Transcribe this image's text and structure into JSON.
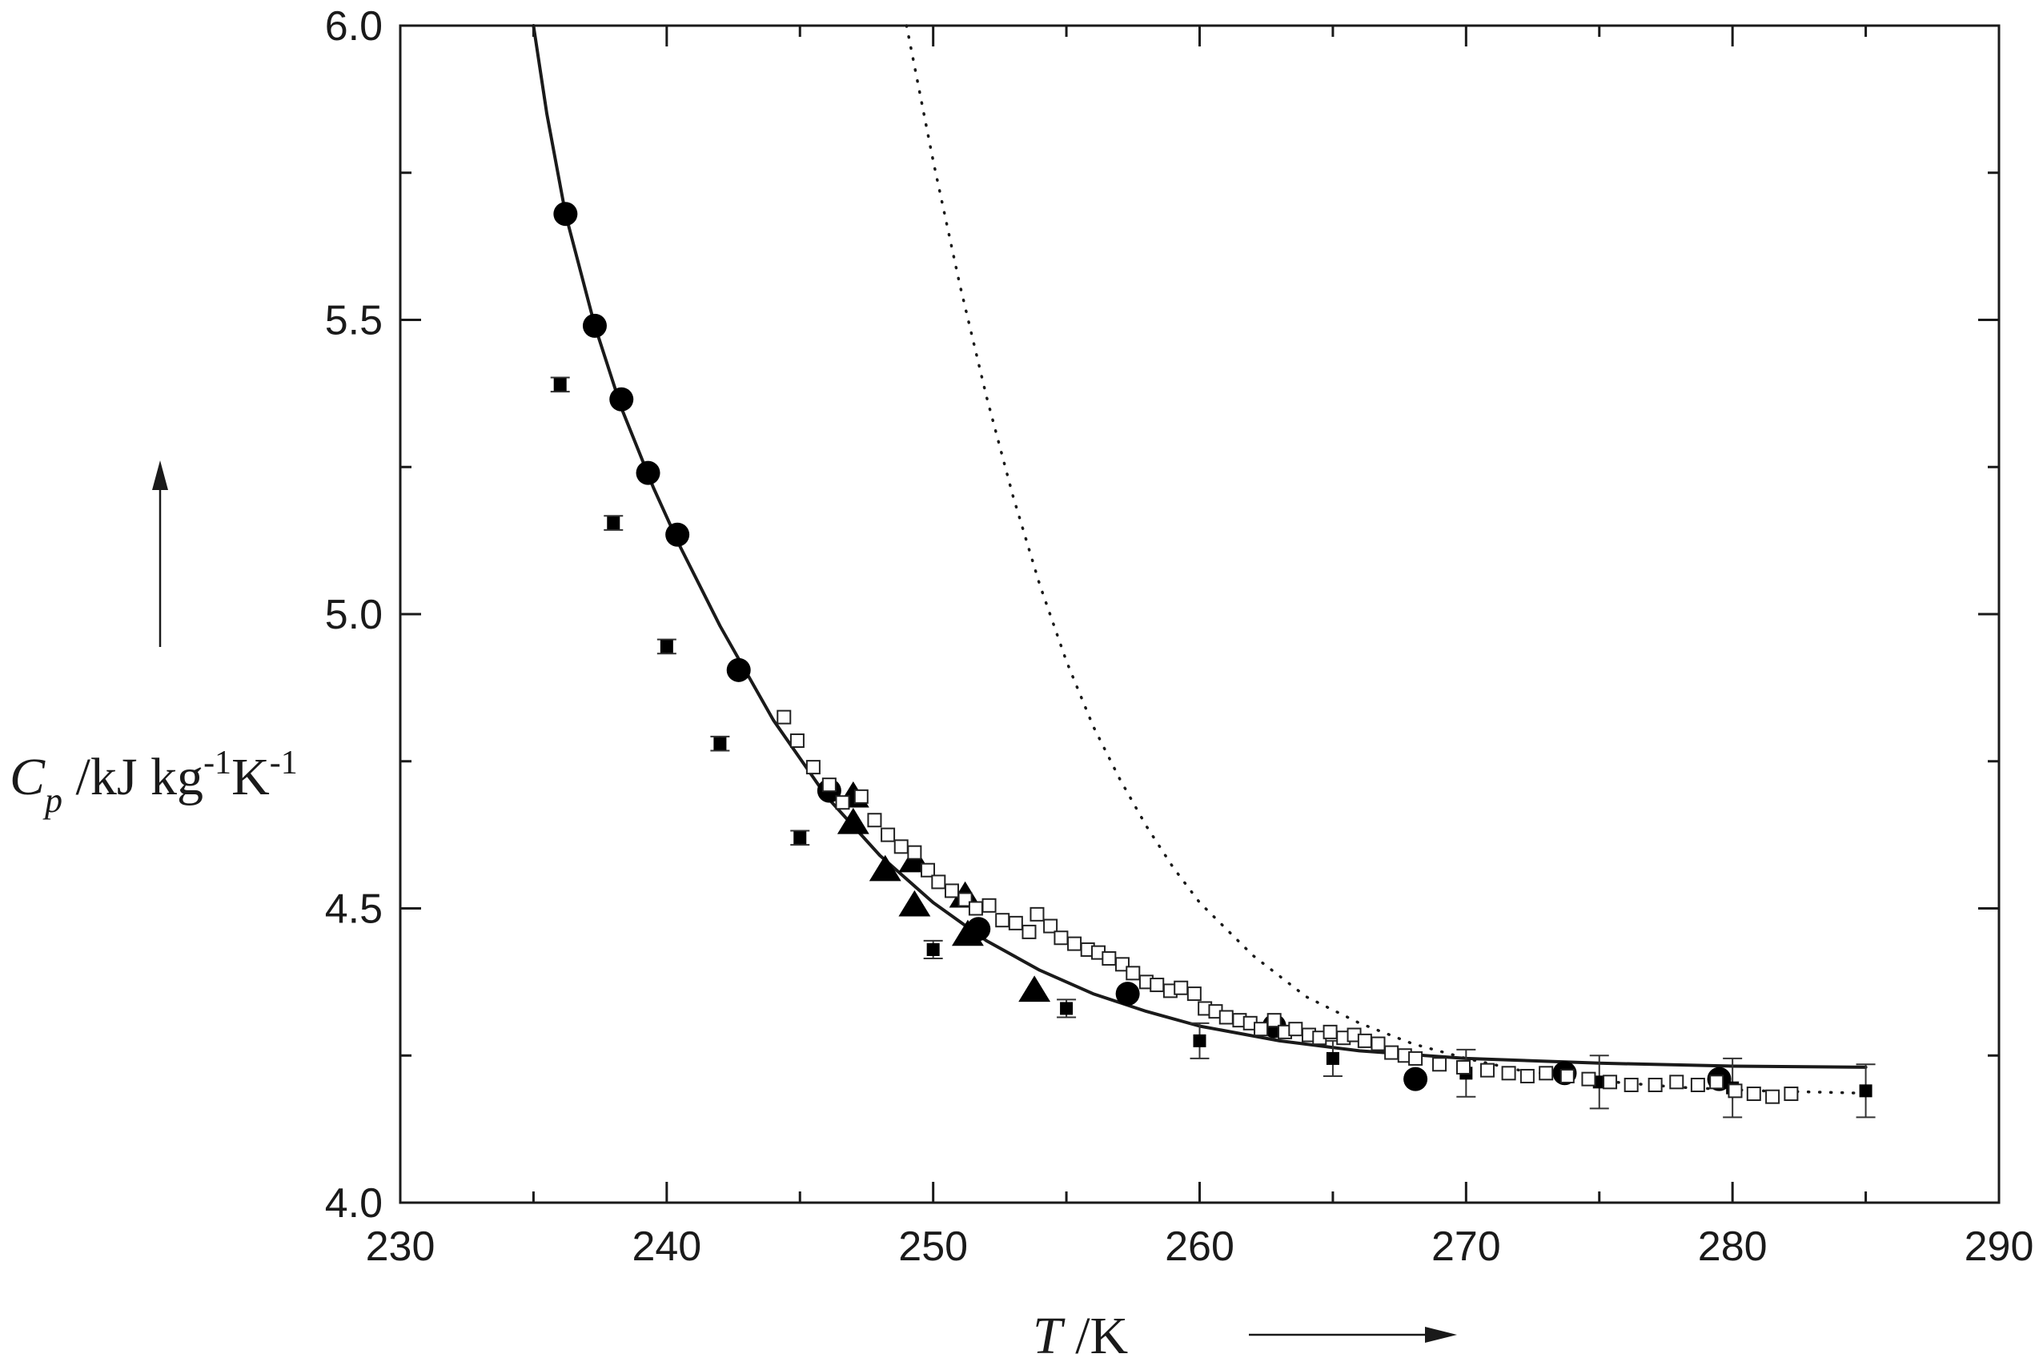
{
  "chart_data": {
    "type": "scatter",
    "xlabel": {
      "symbol": "T",
      "unit": " /K"
    },
    "ylabel": {
      "symbol": "C",
      "subscript": "p",
      "unit_1": " /kJ kg",
      "exp_1": "-1",
      "unit_2": "K",
      "exp_2": "-1"
    },
    "xlim": [
      230,
      290
    ],
    "ylim": [
      4.0,
      6.0
    ],
    "x_ticks": [
      230,
      240,
      250,
      260,
      270,
      280,
      290
    ],
    "x_tick_labels": [
      "230",
      "240",
      "250",
      "260",
      "270",
      "280",
      "290"
    ],
    "y_ticks": [
      4.0,
      4.5,
      5.0,
      5.5,
      6.0
    ],
    "y_tick_labels": [
      "4.0",
      "4.5",
      "5.0",
      "5.5",
      "6.0"
    ],
    "grid": false,
    "series": [
      {
        "marker": "filled-circle",
        "points": [
          [
            236.2,
            5.68
          ],
          [
            237.3,
            5.49
          ],
          [
            238.3,
            5.365
          ],
          [
            239.3,
            5.24
          ],
          [
            240.4,
            5.135
          ],
          [
            242.7,
            4.905
          ],
          [
            246.1,
            4.7
          ],
          [
            251.7,
            4.465
          ],
          [
            257.3,
            4.355
          ],
          [
            262.8,
            4.3
          ],
          [
            268.1,
            4.21
          ],
          [
            273.7,
            4.22
          ],
          [
            279.5,
            4.21
          ]
        ]
      },
      {
        "marker": "filled-triangle",
        "points": [
          [
            247.0,
            4.69
          ],
          [
            247.0,
            4.645
          ],
          [
            248.2,
            4.565
          ],
          [
            249.3,
            4.58
          ],
          [
            249.3,
            4.505
          ],
          [
            251.2,
            4.52
          ],
          [
            251.3,
            4.455
          ],
          [
            253.8,
            4.36
          ]
        ]
      },
      {
        "marker": "filled-square-errorbar",
        "points": [
          [
            236,
            5.39,
            0.012
          ],
          [
            238,
            5.155,
            0.012
          ],
          [
            240,
            4.945,
            0.012
          ],
          [
            242,
            4.78,
            0.012
          ],
          [
            245,
            4.62,
            0.012
          ],
          [
            250,
            4.43,
            0.015
          ],
          [
            255,
            4.33,
            0.015
          ],
          [
            260,
            4.275,
            0.03
          ],
          [
            265,
            4.245,
            0.03
          ],
          [
            270,
            4.22,
            0.04
          ],
          [
            275,
            4.205,
            0.045
          ],
          [
            280,
            4.195,
            0.05
          ],
          [
            285,
            4.19,
            0.045
          ]
        ]
      },
      {
        "marker": "open-square",
        "points": [
          [
            244.4,
            4.825
          ],
          [
            244.9,
            4.785
          ],
          [
            245.5,
            4.74
          ],
          [
            246.1,
            4.71
          ],
          [
            246.6,
            4.68
          ],
          [
            247.3,
            4.69
          ],
          [
            247.8,
            4.65
          ],
          [
            248.3,
            4.625
          ],
          [
            248.8,
            4.605
          ],
          [
            249.3,
            4.595
          ],
          [
            249.8,
            4.565
          ],
          [
            250.2,
            4.545
          ],
          [
            250.7,
            4.53
          ],
          [
            251.2,
            4.515
          ],
          [
            251.6,
            4.5
          ],
          [
            252.1,
            4.505
          ],
          [
            252.6,
            4.48
          ],
          [
            253.1,
            4.475
          ],
          [
            253.6,
            4.46
          ],
          [
            253.9,
            4.49
          ],
          [
            254.4,
            4.47
          ],
          [
            254.8,
            4.45
          ],
          [
            255.3,
            4.44
          ],
          [
            255.8,
            4.43
          ],
          [
            256.2,
            4.425
          ],
          [
            256.6,
            4.415
          ],
          [
            257.1,
            4.405
          ],
          [
            257.5,
            4.39
          ],
          [
            258.0,
            4.375
          ],
          [
            258.4,
            4.37
          ],
          [
            258.9,
            4.36
          ],
          [
            259.3,
            4.365
          ],
          [
            259.8,
            4.355
          ],
          [
            260.2,
            4.33
          ],
          [
            260.6,
            4.325
          ],
          [
            261.0,
            4.315
          ],
          [
            261.5,
            4.31
          ],
          [
            261.9,
            4.305
          ],
          [
            262.3,
            4.295
          ],
          [
            262.8,
            4.31
          ],
          [
            263.2,
            4.29
          ],
          [
            263.6,
            4.295
          ],
          [
            264.1,
            4.285
          ],
          [
            264.5,
            4.28
          ],
          [
            264.9,
            4.29
          ],
          [
            265.4,
            4.28
          ],
          [
            265.8,
            4.285
          ],
          [
            266.2,
            4.275
          ],
          [
            266.7,
            4.27
          ],
          [
            267.2,
            4.255
          ],
          [
            267.7,
            4.25
          ],
          [
            268.1,
            4.245
          ],
          [
            269.0,
            4.235
          ],
          [
            269.9,
            4.23
          ],
          [
            270.8,
            4.225
          ],
          [
            271.6,
            4.22
          ],
          [
            272.3,
            4.215
          ],
          [
            273.0,
            4.22
          ],
          [
            273.8,
            4.215
          ],
          [
            274.6,
            4.21
          ],
          [
            275.4,
            4.205
          ],
          [
            276.2,
            4.2
          ],
          [
            277.1,
            4.2
          ],
          [
            277.9,
            4.205
          ],
          [
            278.7,
            4.2
          ],
          [
            279.4,
            4.205
          ],
          [
            280.1,
            4.19
          ],
          [
            280.8,
            4.185
          ],
          [
            281.5,
            4.18
          ],
          [
            282.2,
            4.185
          ]
        ]
      },
      {
        "marker": "solid-line",
        "points": [
          [
            235.0,
            6.0
          ],
          [
            235.5,
            5.85
          ],
          [
            236.2,
            5.68
          ],
          [
            237.3,
            5.49
          ],
          [
            238.3,
            5.35
          ],
          [
            239.5,
            5.215
          ],
          [
            240.5,
            5.115
          ],
          [
            242.0,
            4.98
          ],
          [
            244.0,
            4.82
          ],
          [
            246.0,
            4.69
          ],
          [
            248.0,
            4.59
          ],
          [
            250.0,
            4.51
          ],
          [
            252.0,
            4.445
          ],
          [
            254.0,
            4.395
          ],
          [
            256.0,
            4.355
          ],
          [
            258.0,
            4.325
          ],
          [
            260.0,
            4.3
          ],
          [
            263.0,
            4.275
          ],
          [
            266.0,
            4.258
          ],
          [
            270.0,
            4.245
          ],
          [
            275.0,
            4.237
          ],
          [
            280.0,
            4.232
          ],
          [
            285.0,
            4.23
          ]
        ]
      },
      {
        "marker": "dotted-line",
        "points": [
          [
            249.0,
            6.0
          ],
          [
            250.0,
            5.77
          ],
          [
            251.0,
            5.56
          ],
          [
            252.0,
            5.37
          ],
          [
            253.0,
            5.2
          ],
          [
            254.0,
            5.05
          ],
          [
            255.0,
            4.92
          ],
          [
            256.0,
            4.81
          ],
          [
            257.0,
            4.72
          ],
          [
            258.0,
            4.64
          ],
          [
            259.0,
            4.57
          ],
          [
            260.0,
            4.51
          ],
          [
            262.0,
            4.42
          ],
          [
            264.0,
            4.35
          ],
          [
            266.0,
            4.305
          ],
          [
            268.0,
            4.27
          ],
          [
            270.0,
            4.245
          ],
          [
            272.0,
            4.225
          ],
          [
            275.0,
            4.207
          ],
          [
            278.0,
            4.196
          ],
          [
            281.0,
            4.19
          ],
          [
            285.0,
            4.186
          ]
        ]
      }
    ]
  }
}
